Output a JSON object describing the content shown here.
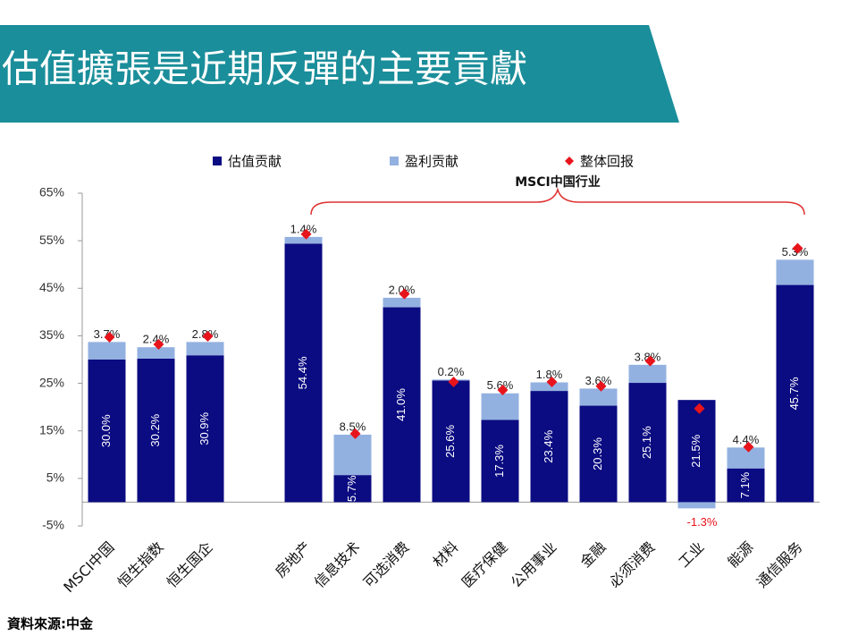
{
  "chart_data": {
    "type": "bar",
    "title": "估值擴張是近期反彈的主要貢獻",
    "annotation": "MSCI中国行业",
    "source": "資料來源:中金",
    "categories": [
      "MSCI中国",
      "恒生指数",
      "恒生国企",
      null,
      "房地产",
      "信息技术",
      "可选消费",
      "材料",
      "医疗保健",
      "公用事业",
      "金融",
      "必须消费",
      "工业",
      "能源",
      "通信服务"
    ],
    "series": [
      {
        "name": "估值贡献",
        "color": "#0b0b82",
        "stacked": true,
        "values": [
          30.0,
          30.2,
          30.9,
          null,
          54.4,
          5.7,
          41.0,
          25.6,
          17.3,
          23.4,
          20.3,
          25.1,
          21.5,
          7.1,
          45.7
        ],
        "value_labels": [
          "30.0%",
          "30.2%",
          "30.9%",
          null,
          "54.4%",
          "5.7%",
          "41.0%",
          "25.6%",
          "17.3%",
          "23.4%",
          "20.3%",
          "25.1%",
          "21.5%",
          "7.1%",
          "45.7%"
        ]
      },
      {
        "name": "盈利贡献",
        "color": "#93b1e0",
        "stacked": true,
        "values": [
          3.7,
          2.4,
          2.8,
          null,
          1.4,
          8.5,
          2.0,
          0.2,
          5.6,
          1.8,
          3.6,
          3.8,
          -1.3,
          4.4,
          5.3
        ],
        "value_labels": [
          "3.7%",
          "2.4%",
          "2.8%",
          null,
          "1.4%",
          "8.5%",
          "2.0%",
          "0.2%",
          "5.6%",
          "1.8%",
          "3.6%",
          "3.8%",
          "-1.3%",
          "4.4%",
          "5.3%"
        ]
      },
      {
        "name": "整体回报",
        "color": "#e8141c",
        "type": "scatter",
        "marker": "diamond",
        "values": [
          34.7,
          33.2,
          34.9,
          null,
          56.4,
          14.4,
          43.8,
          25.3,
          23.6,
          25.3,
          24.4,
          29.7,
          19.7,
          11.6,
          53.4
        ]
      }
    ],
    "ylim": [
      -5,
      65
    ],
    "yticks": [
      {
        "value": -5,
        "label": "-5%"
      },
      {
        "value": 5,
        "label": "5%"
      },
      {
        "value": 15,
        "label": "15%"
      },
      {
        "value": 25,
        "label": "25%"
      },
      {
        "value": 35,
        "label": "35%"
      },
      {
        "value": 45,
        "label": "45%"
      },
      {
        "value": 55,
        "label": "55%"
      },
      {
        "value": 65,
        "label": "65%"
      }
    ],
    "negative_label_color": "#e8141c"
  }
}
